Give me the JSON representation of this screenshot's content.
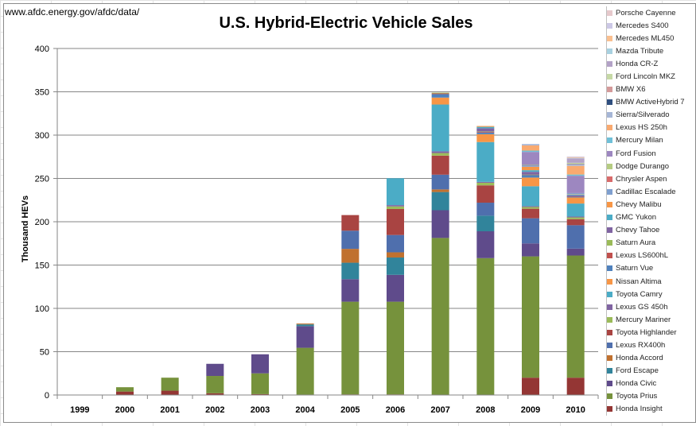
{
  "source_text": "www.afdc.energy.gov/afdc/data/",
  "chart_data": {
    "type": "bar",
    "stacked": true,
    "title": "U.S. Hybrid-Electric Vehicle Sales",
    "xlabel": "",
    "ylabel": "Thousand HEVs",
    "ylim": [
      0,
      400
    ],
    "yticks": [
      0,
      50,
      100,
      150,
      200,
      250,
      300,
      350,
      400
    ],
    "grid": true,
    "legend_position": "right",
    "categories": [
      "1999",
      "2000",
      "2001",
      "2002",
      "2003",
      "2004",
      "2005",
      "2006",
      "2007",
      "2008",
      "2009",
      "2010"
    ],
    "series": [
      {
        "name": "Honda Insight",
        "color": "#943634",
        "values": [
          0,
          4,
          5,
          2,
          1,
          0.5,
          0.7,
          0.7,
          0.3,
          0,
          20,
          20
        ]
      },
      {
        "name": "Toyota Prius",
        "color": "#76923c",
        "values": [
          0,
          5,
          15,
          20,
          24,
          54,
          107,
          107,
          181,
          158,
          140,
          141
        ]
      },
      {
        "name": "Honda Civic",
        "color": "#5f4b8b",
        "values": [
          0,
          0,
          0,
          14,
          22,
          25,
          26,
          31,
          32,
          31,
          15,
          8
        ]
      },
      {
        "name": "Ford Escape",
        "color": "#31849b",
        "values": [
          0,
          0,
          0,
          0,
          0,
          2,
          19,
          20,
          21,
          18,
          0,
          0
        ]
      },
      {
        "name": "Honda Accord",
        "color": "#c0712f",
        "values": [
          0,
          0,
          0,
          0,
          0,
          1,
          16,
          6,
          3,
          0,
          0,
          0
        ]
      },
      {
        "name": "Lexus RX400h",
        "color": "#4f6fad",
        "values": [
          0,
          0,
          0,
          0,
          0,
          0,
          21,
          20,
          17,
          15,
          29,
          27
        ]
      },
      {
        "name": "Toyota Highlander",
        "color": "#a94442",
        "values": [
          0,
          0,
          0,
          0,
          0,
          0,
          18,
          30,
          22,
          20,
          11,
          7
        ]
      },
      {
        "name": "Mercury Mariner",
        "color": "#9bbb59",
        "values": [
          0,
          0,
          0,
          0,
          0,
          0,
          0,
          3,
          3,
          3,
          2,
          2
        ]
      },
      {
        "name": "Lexus GS 450h",
        "color": "#8064a2",
        "values": [
          0,
          0,
          0,
          0,
          0,
          0,
          0,
          1.5,
          2,
          1,
          1,
          1
        ]
      },
      {
        "name": "Toyota Camry",
        "color": "#4bacc6",
        "values": [
          0,
          0,
          0,
          0,
          0,
          0,
          0,
          31,
          54,
          46,
          23,
          15
        ]
      },
      {
        "name": "Nissan Altima",
        "color": "#f79646",
        "values": [
          0,
          0,
          0,
          0,
          0,
          0,
          0,
          0,
          8,
          9,
          10,
          7
        ]
      },
      {
        "name": "Saturn Vue",
        "color": "#4f81bd",
        "values": [
          0,
          0,
          0,
          0,
          0,
          0,
          0,
          0,
          4,
          2,
          3,
          1
        ]
      },
      {
        "name": "Lexus LS600hL",
        "color": "#c0504d",
        "values": [
          0,
          0,
          0,
          0,
          0,
          0,
          0,
          0,
          0.9,
          0.9,
          0.3,
          0.1
        ]
      },
      {
        "name": "Saturn Aura",
        "color": "#9bbb59",
        "values": [
          0,
          0,
          0,
          0,
          0,
          0,
          0,
          0,
          0.8,
          0.3,
          0.1,
          0
        ]
      },
      {
        "name": "Chevy Tahoe",
        "color": "#8064a2",
        "values": [
          0,
          0,
          0,
          0,
          0,
          0,
          0,
          0,
          0,
          3.7,
          3.2,
          1.4
        ]
      },
      {
        "name": "GMC Yukon",
        "color": "#4bacc6",
        "values": [
          0,
          0,
          0,
          0,
          0,
          0,
          0,
          0,
          0,
          1.6,
          1.9,
          1
        ]
      },
      {
        "name": "Chevy Malibu",
        "color": "#f79646",
        "values": [
          0,
          0,
          0,
          0,
          0,
          0,
          0,
          0,
          0,
          1,
          4,
          0.4
        ]
      },
      {
        "name": "Cadillac Escalade",
        "color": "#7f9fcf",
        "values": [
          0,
          0,
          0,
          0,
          0,
          0,
          0,
          0,
          0,
          0,
          1.9,
          1.2
        ]
      },
      {
        "name": "Chrysler Aspen",
        "color": "#d86b6b",
        "values": [
          0,
          0,
          0,
          0,
          0,
          0,
          0,
          0,
          0,
          0,
          0.1,
          0
        ]
      },
      {
        "name": "Dodge Durango",
        "color": "#b5cc82",
        "values": [
          0,
          0,
          0,
          0,
          0,
          0,
          0,
          0,
          0,
          0,
          0.1,
          0
        ]
      },
      {
        "name": "Ford Fusion",
        "color": "#9d87c0",
        "values": [
          0,
          0,
          0,
          0,
          0,
          0,
          0,
          0,
          0,
          0,
          15,
          20
        ]
      },
      {
        "name": "Mercury Milan",
        "color": "#6fc0d8",
        "values": [
          0,
          0,
          0,
          0,
          0,
          0,
          0,
          0,
          0,
          0,
          1.5,
          1.4
        ]
      },
      {
        "name": "Lexus HS 250h",
        "color": "#f9aa70",
        "values": [
          0,
          0,
          0,
          0,
          0,
          0,
          0,
          0,
          0,
          0,
          6,
          10
        ]
      },
      {
        "name": "Sierra/Silverado",
        "color": "#a6b6d6",
        "values": [
          0,
          0,
          0,
          0,
          0,
          0,
          0,
          0,
          0,
          0,
          1.6,
          2
        ]
      },
      {
        "name": "BMW ActiveHybrid 7",
        "color": "#2f4f7f",
        "values": [
          0,
          0,
          0,
          0,
          0,
          0,
          0,
          0,
          0,
          0,
          0,
          0.1
        ]
      },
      {
        "name": "BMW X6",
        "color": "#d49a9a",
        "values": [
          0,
          0,
          0,
          0,
          0,
          0,
          0,
          0,
          0,
          0,
          0,
          0.2
        ]
      },
      {
        "name": "Ford Lincoln MKZ",
        "color": "#c6d9a6",
        "values": [
          0,
          0,
          0,
          0,
          0,
          0,
          0,
          0,
          0,
          0,
          0,
          1.2
        ]
      },
      {
        "name": "Honda CR-Z",
        "color": "#b3a2c7",
        "values": [
          0,
          0,
          0,
          0,
          0,
          0,
          0,
          0,
          0,
          0,
          0,
          5.2
        ]
      },
      {
        "name": "Mazda Tribute",
        "color": "#a8d1e0",
        "values": [
          0,
          0,
          0,
          0,
          0,
          0,
          0,
          0,
          0,
          0,
          0,
          0.5
        ]
      },
      {
        "name": "Mercedes ML450",
        "color": "#fac090",
        "values": [
          0,
          0,
          0,
          0,
          0,
          0,
          0,
          0,
          0,
          0,
          0,
          0.6
        ]
      },
      {
        "name": "Mercedes S400",
        "color": "#ccc8e6",
        "values": [
          0,
          0,
          0,
          0,
          0,
          0,
          0,
          0,
          0,
          0,
          0,
          0.8
        ]
      },
      {
        "name": "Porsche Cayenne",
        "color": "#e6c9cc",
        "values": [
          0,
          0,
          0,
          0,
          0,
          0,
          0,
          0,
          0,
          0,
          0,
          0.2
        ]
      }
    ]
  }
}
